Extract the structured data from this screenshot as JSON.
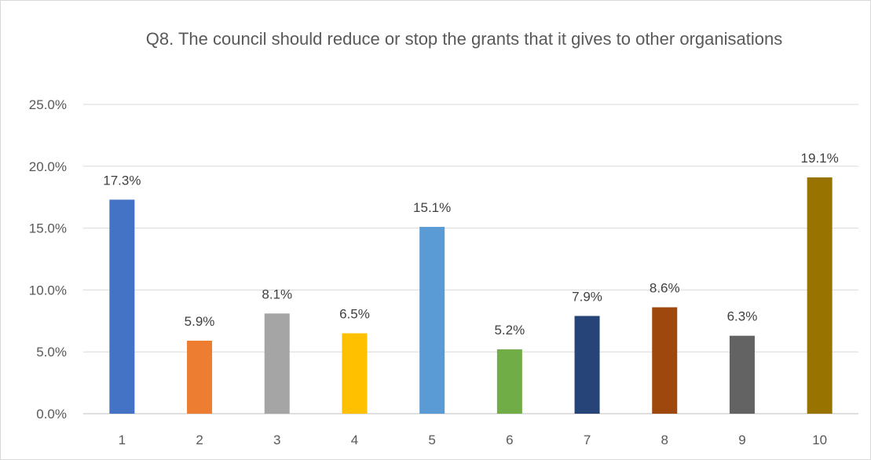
{
  "chart_data": {
    "type": "bar",
    "title": "Q8. The council should reduce or stop the grants that it gives to other organisations",
    "categories": [
      "1",
      "2",
      "3",
      "4",
      "5",
      "6",
      "7",
      "8",
      "9",
      "10"
    ],
    "values": [
      17.3,
      5.9,
      8.1,
      6.5,
      15.1,
      5.2,
      7.9,
      8.6,
      6.3,
      19.1
    ],
    "data_labels": [
      "17.3%",
      "5.9%",
      "8.1%",
      "6.5%",
      "15.1%",
      "5.2%",
      "7.9%",
      "8.6%",
      "6.3%",
      "19.1%"
    ],
    "colors": [
      "#4472c4",
      "#ed7d31",
      "#a5a5a5",
      "#ffc000",
      "#5b9bd5",
      "#70ad47",
      "#264478",
      "#9e480e",
      "#636363",
      "#997300"
    ],
    "ylim": [
      0,
      25
    ],
    "yticks": [
      0,
      5,
      10,
      15,
      20,
      25
    ],
    "ytick_labels": [
      "0.0%",
      "5.0%",
      "10.0%",
      "15.0%",
      "20.0%",
      "25.0%"
    ],
    "xlabel": "",
    "ylabel": "",
    "grid": true,
    "legend": "none"
  }
}
